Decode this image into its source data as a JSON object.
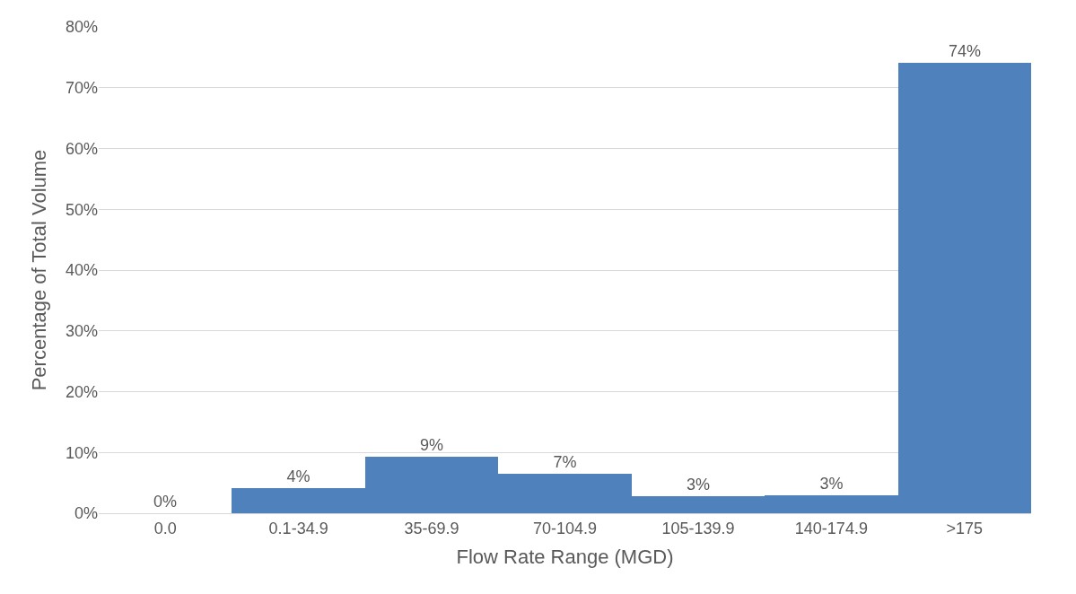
{
  "chart_data": {
    "type": "bar",
    "xlabel": "Flow Rate Range (MGD)",
    "ylabel": "Percentage of Total Volume",
    "categories": [
      "0.0",
      "0.1-34.9",
      "35-69.9",
      "70-104.9",
      "105-139.9",
      "140-174.9",
      ">175"
    ],
    "values": [
      0,
      4.2,
      9.3,
      6.5,
      2.8,
      2.9,
      74.1
    ],
    "value_labels": [
      "0%",
      "4%",
      "9%",
      "7%",
      "3%",
      "3%",
      "74%"
    ],
    "color": "#4f81bd",
    "ylim": [
      0,
      80
    ],
    "yticks": [
      {
        "value": 0,
        "label": "0%"
      },
      {
        "value": 10,
        "label": "10%"
      },
      {
        "value": 20,
        "label": "20%"
      },
      {
        "value": 30,
        "label": "30%"
      },
      {
        "value": 40,
        "label": "40%"
      },
      {
        "value": 50,
        "label": "50%"
      },
      {
        "value": 60,
        "label": "60%"
      },
      {
        "value": 70,
        "label": "70%"
      },
      {
        "value": 80,
        "label": "80%"
      }
    ],
    "grid": "y"
  }
}
